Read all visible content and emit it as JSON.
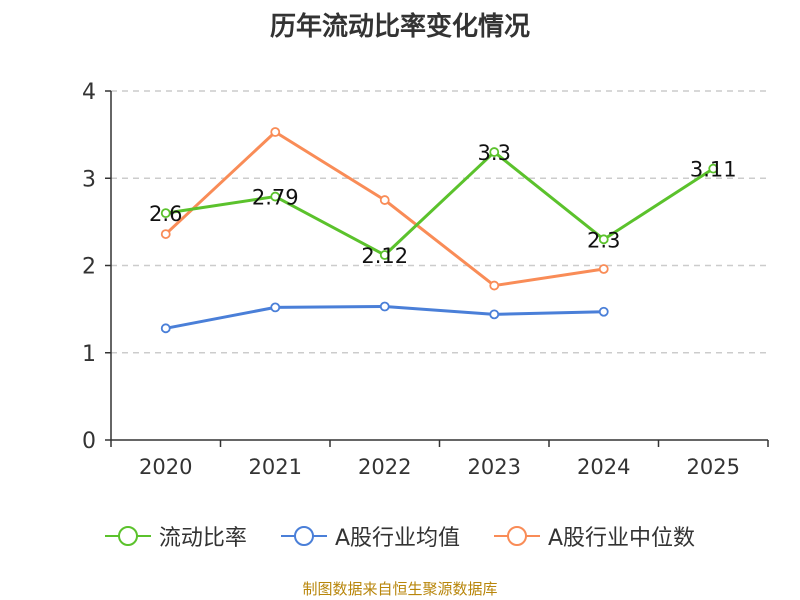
{
  "chart_data": {
    "type": "line",
    "title": "历年流动比率变化情况",
    "categories": [
      "2020",
      "2021",
      "2022",
      "2023",
      "2024",
      "2025"
    ],
    "ylim": [
      0,
      4
    ],
    "yticks": [
      "0",
      "1",
      "2",
      "3",
      "4"
    ],
    "grid": true,
    "legend_position": "bottom",
    "series": [
      {
        "name": "流动比率",
        "color": "#5bc22c",
        "values": [
          2.6,
          2.79,
          2.12,
          3.3,
          2.3,
          3.11
        ],
        "labels": [
          "2.6",
          "2.79",
          "2.12",
          "3.3",
          "2.3",
          "3.11"
        ]
      },
      {
        "name": "A股行业均值",
        "color": "#4a7fd8",
        "values": [
          1.28,
          1.52,
          1.53,
          1.44,
          1.47,
          null
        ]
      },
      {
        "name": "A股行业中位数",
        "color": "#f98c57",
        "values": [
          2.36,
          3.53,
          2.75,
          1.77,
          1.96,
          null
        ]
      }
    ],
    "source": "制图数据来自恒生聚源数据库"
  }
}
